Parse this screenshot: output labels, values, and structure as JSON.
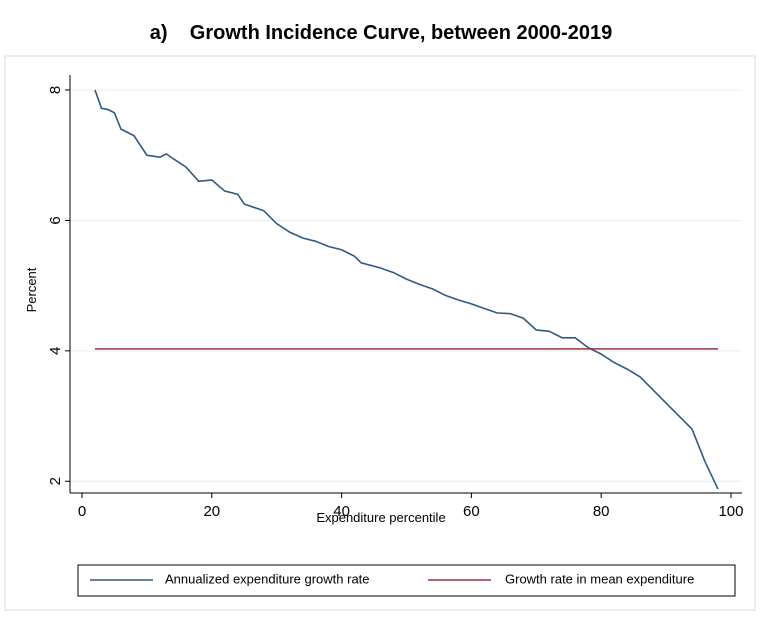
{
  "chart_data": {
    "type": "line",
    "title": "a)    Growth Incidence Curve, between 2000-2019",
    "x_label": "Expenditure percentile",
    "y_label": "Percent",
    "xlim": [
      -1.85,
      101.7
    ],
    "ylim": [
      1.82,
      8.23
    ],
    "xticks": [
      0,
      20,
      40,
      60,
      80,
      100
    ],
    "yticks": [
      2,
      4,
      6,
      8
    ],
    "grid": true,
    "legend": "bottom",
    "series": [
      {
        "name": "Annualized expenditure growth rate",
        "color": "#2f5a82",
        "x": [
          2,
          3,
          4,
          5,
          6,
          8,
          10,
          12,
          13,
          14,
          16,
          18,
          20,
          22,
          24,
          25,
          28,
          30,
          32,
          34,
          36,
          38,
          40,
          42,
          43,
          46,
          48,
          50,
          52,
          54,
          56,
          58,
          60,
          62,
          64,
          66,
          68,
          70,
          72,
          74,
          76,
          78,
          80,
          82,
          84,
          86,
          88,
          90,
          92,
          94,
          96,
          98
        ],
        "values": [
          8.0,
          7.72,
          7.7,
          7.65,
          7.4,
          7.3,
          7.0,
          6.97,
          7.02,
          6.95,
          6.82,
          6.6,
          6.62,
          6.45,
          6.4,
          6.25,
          6.15,
          5.95,
          5.82,
          5.73,
          5.68,
          5.6,
          5.55,
          5.45,
          5.35,
          5.27,
          5.2,
          5.1,
          5.02,
          4.95,
          4.85,
          4.78,
          4.72,
          4.65,
          4.58,
          4.57,
          4.5,
          4.32,
          4.3,
          4.2,
          4.2,
          4.05,
          3.95,
          3.82,
          3.72,
          3.6,
          3.4,
          3.2,
          3.0,
          2.8,
          2.3,
          1.88
        ]
      },
      {
        "name": "Growth rate in mean expenditure",
        "color": "#9a3340",
        "x": [
          2,
          98
        ],
        "values": [
          4.03,
          4.03
        ]
      }
    ]
  }
}
